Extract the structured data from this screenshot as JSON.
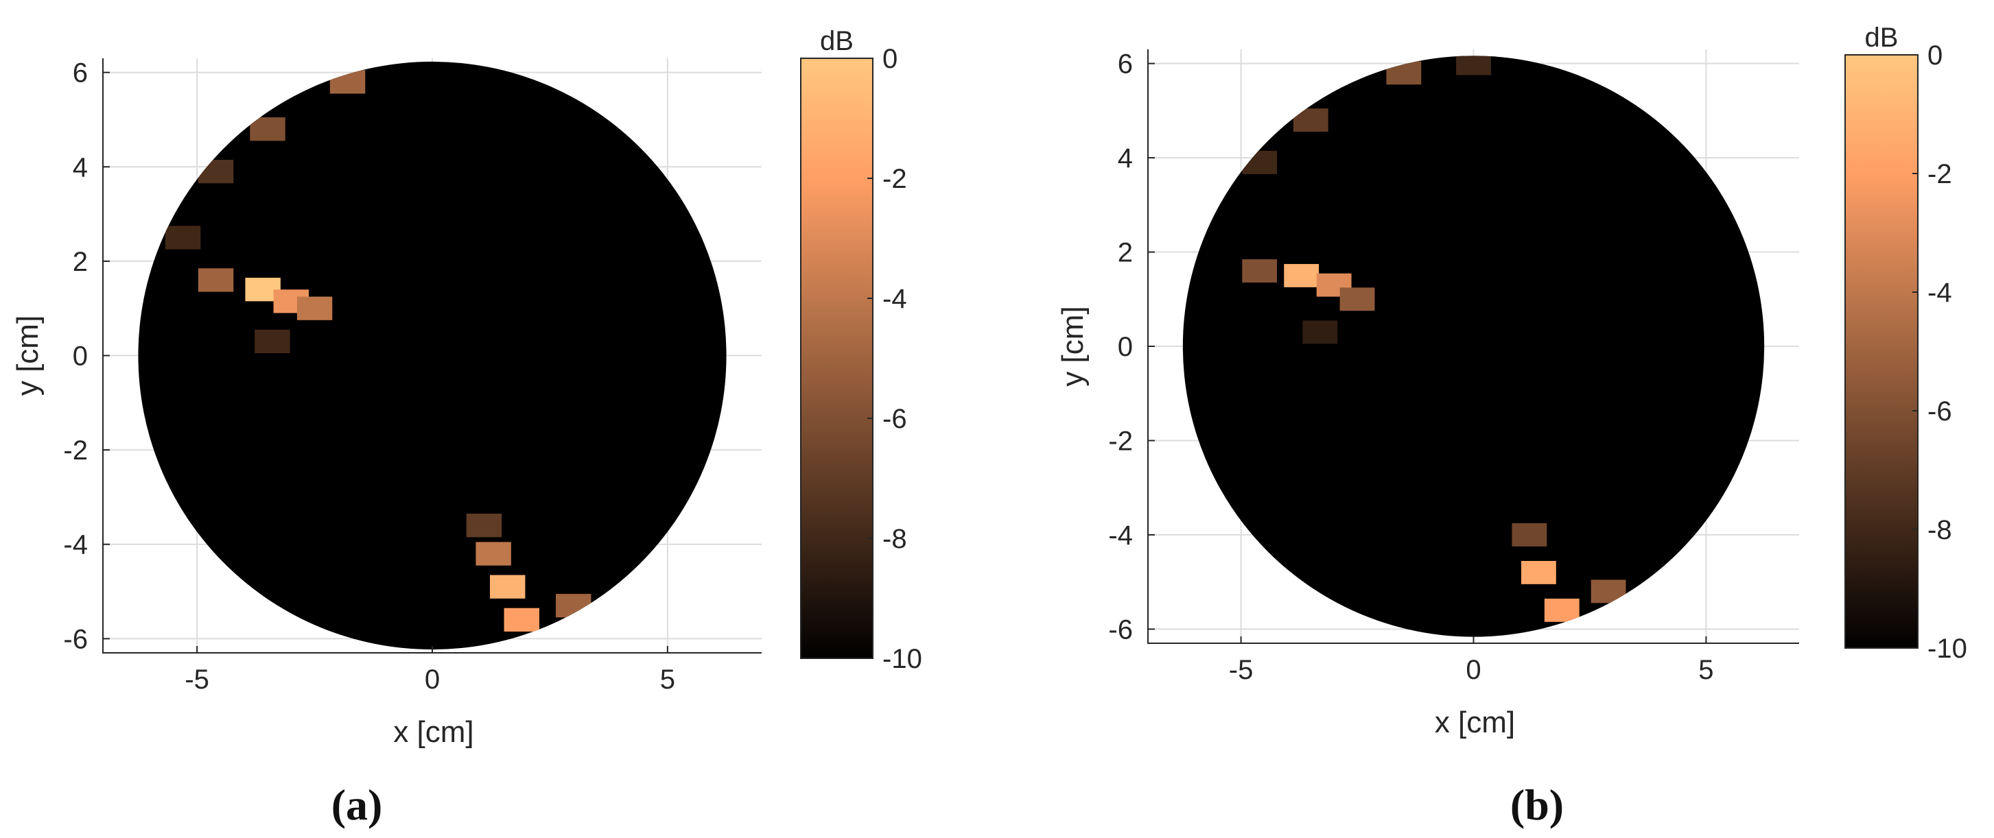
{
  "chart_data": [
    {
      "type": "heatmap",
      "panel_label": "(a)",
      "xlabel": "x [cm]",
      "ylabel": "y [cm]",
      "xlim": [
        -7,
        7
      ],
      "ylim": [
        -6.3,
        6.3
      ],
      "xticks": [
        -5,
        0,
        5
      ],
      "yticks": [
        -6,
        -4,
        -2,
        0,
        2,
        4,
        6
      ],
      "grid": true,
      "domain_radius": 6.25,
      "background_value": -10,
      "colorbar": {
        "title": "dB",
        "range": [
          -10,
          0
        ],
        "ticks": [
          0,
          -2,
          -4,
          -6,
          -8,
          -10
        ],
        "colormap": "copper"
      },
      "hotspots": [
        {
          "x": -3.6,
          "y": 1.4,
          "value": 0
        },
        {
          "x": -3.0,
          "y": 1.15,
          "value": -2.5
        },
        {
          "x": -4.6,
          "y": 1.6,
          "value": -5
        },
        {
          "x": -3.4,
          "y": 0.3,
          "value": -8
        },
        {
          "x": -2.5,
          "y": 1.0,
          "value": -4
        },
        {
          "x": -1.8,
          "y": 5.8,
          "value": -5
        },
        {
          "x": -3.5,
          "y": 4.8,
          "value": -6
        },
        {
          "x": -4.6,
          "y": 3.9,
          "value": -7.5
        },
        {
          "x": -5.3,
          "y": 2.5,
          "value": -8
        },
        {
          "x": 1.9,
          "y": -5.6,
          "value": -2
        },
        {
          "x": 1.6,
          "y": -4.9,
          "value": -1
        },
        {
          "x": 1.3,
          "y": -4.2,
          "value": -4
        },
        {
          "x": 1.1,
          "y": -3.6,
          "value": -7
        },
        {
          "x": 3.0,
          "y": -5.3,
          "value": -5
        }
      ]
    },
    {
      "type": "heatmap",
      "panel_label": "(b)",
      "xlabel": "x [cm]",
      "ylabel": "y [cm]",
      "xlim": [
        -7,
        7
      ],
      "ylim": [
        -6.3,
        6.3
      ],
      "xticks": [
        -5,
        0,
        5
      ],
      "yticks": [
        -6,
        -4,
        -2,
        0,
        2,
        4,
        6
      ],
      "grid": true,
      "domain_radius": 6.25,
      "background_value": -10,
      "colorbar": {
        "title": "dB",
        "range": [
          -10,
          0
        ],
        "ticks": [
          0,
          -2,
          -4,
          -6,
          -8,
          -10
        ],
        "colormap": "copper"
      },
      "hotspots": [
        {
          "x": -3.7,
          "y": 1.5,
          "value": -1
        },
        {
          "x": -3.0,
          "y": 1.3,
          "value": -3
        },
        {
          "x": -4.6,
          "y": 1.6,
          "value": -6
        },
        {
          "x": -3.3,
          "y": 0.3,
          "value": -8.5
        },
        {
          "x": -2.5,
          "y": 1.0,
          "value": -5.5
        },
        {
          "x": -1.5,
          "y": 5.8,
          "value": -6
        },
        {
          "x": 0.0,
          "y": 6.0,
          "value": -8
        },
        {
          "x": -3.5,
          "y": 4.8,
          "value": -7
        },
        {
          "x": -4.6,
          "y": 3.9,
          "value": -8
        },
        {
          "x": 1.9,
          "y": -5.6,
          "value": -2
        },
        {
          "x": 1.4,
          "y": -4.8,
          "value": -1.5
        },
        {
          "x": 1.2,
          "y": -4.0,
          "value": -6.5
        },
        {
          "x": 2.9,
          "y": -5.2,
          "value": -5.5
        }
      ]
    }
  ]
}
